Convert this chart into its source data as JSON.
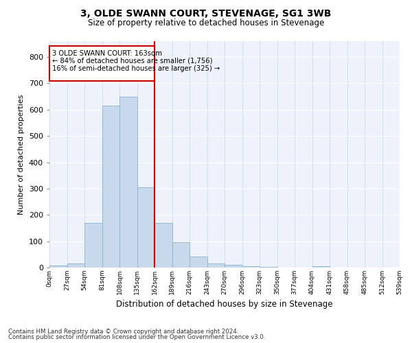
{
  "title": "3, OLDE SWANN COURT, STEVENAGE, SG1 3WB",
  "subtitle": "Size of property relative to detached houses in Stevenage",
  "xlabel": "Distribution of detached houses by size in Stevenage",
  "ylabel": "Number of detached properties",
  "bar_color": "#c9d9ec",
  "bar_edge_color": "#8ab4d4",
  "background_color": "#eef2fb",
  "vline_x": 162,
  "annotation_text_line1": "3 OLDE SWANN COURT: 163sqm",
  "annotation_text_line2": "← 84% of detached houses are smaller (1,756)",
  "annotation_text_line3": "16% of semi-detached houses are larger (325) →",
  "vline_color": "#cc0000",
  "annotation_box_edgecolor": "#cc0000",
  "footer_line1": "Contains HM Land Registry data © Crown copyright and database right 2024.",
  "footer_line2": "Contains public sector information licensed under the Open Government Licence v3.0.",
  "bin_edges": [
    0,
    27,
    54,
    81,
    108,
    135,
    162,
    189,
    216,
    243,
    270,
    297,
    324,
    351,
    378,
    405,
    432,
    459,
    486,
    513,
    540
  ],
  "bin_labels": [
    "0sqm",
    "27sqm",
    "54sqm",
    "81sqm",
    "108sqm",
    "135sqm",
    "162sqm",
    "189sqm",
    "216sqm",
    "243sqm",
    "270sqm",
    "296sqm",
    "323sqm",
    "350sqm",
    "377sqm",
    "404sqm",
    "431sqm",
    "458sqm",
    "485sqm",
    "512sqm",
    "539sqm"
  ],
  "bar_heights": [
    8,
    15,
    170,
    615,
    650,
    305,
    170,
    97,
    43,
    15,
    10,
    5,
    2,
    0,
    0,
    5,
    0,
    0,
    0,
    0
  ],
  "ylim": [
    0,
    860
  ],
  "yticks": [
    0,
    100,
    200,
    300,
    400,
    500,
    600,
    700,
    800
  ]
}
